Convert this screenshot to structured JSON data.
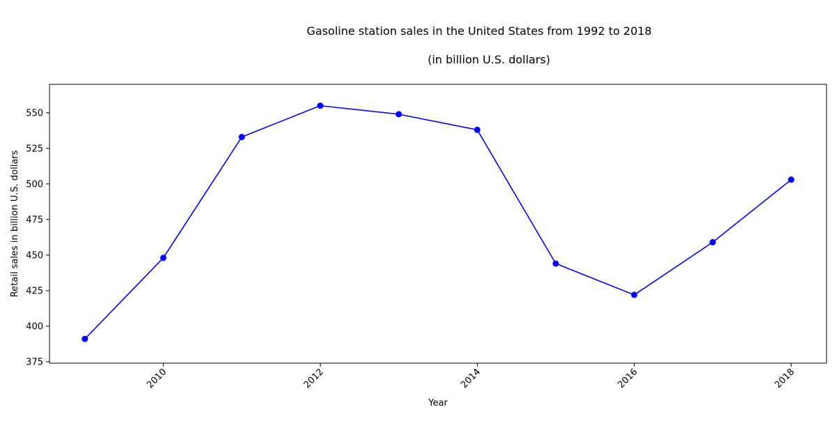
{
  "chart_data": {
    "type": "line",
    "title": "Gasoline station sales in the United States from 1992 to 2018",
    "subtitle": "(in billion U.S. dollars)",
    "xlabel": "Year",
    "ylabel": "Retail sales in billion U.S. dollars",
    "x": [
      2009,
      2010,
      2011,
      2012,
      2013,
      2014,
      2015,
      2016,
      2017,
      2018
    ],
    "values": [
      391,
      448,
      533,
      555,
      549,
      538,
      444,
      422,
      459,
      503
    ],
    "xlim": [
      2008.55,
      2018.45
    ],
    "ylim": [
      374,
      570
    ],
    "xticks": [
      2010,
      2012,
      2014,
      2016,
      2018
    ],
    "xtick_labels": [
      "2010",
      "2012",
      "2014",
      "2016",
      "2018"
    ],
    "yticks": [
      375,
      400,
      425,
      450,
      475,
      500,
      525,
      550
    ],
    "ytick_labels": [
      "375",
      "400",
      "425",
      "450",
      "475",
      "500",
      "525",
      "550"
    ],
    "grid": false,
    "line_color": "#0000ff",
    "marker_color": "#0000ff",
    "marker": "circle"
  }
}
